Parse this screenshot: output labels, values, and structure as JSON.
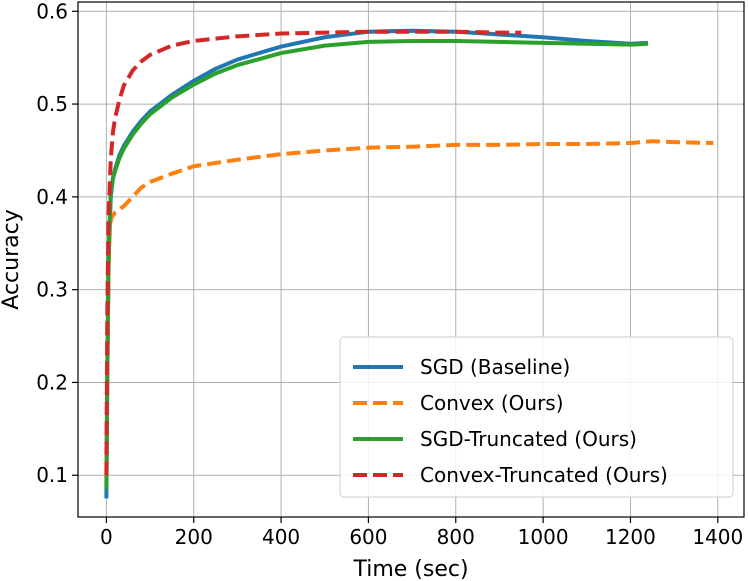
{
  "chart_data": {
    "type": "line",
    "title": "",
    "xlabel": "Time (sec)",
    "ylabel": "Accuracy",
    "xlim": [
      -65,
      1460
    ],
    "ylim": [
      0.055,
      0.61
    ],
    "xticks": [
      0,
      200,
      400,
      600,
      800,
      1000,
      1200,
      1400
    ],
    "yticks": [
      0.1,
      0.2,
      0.3,
      0.4,
      0.5,
      0.6
    ],
    "xtick_labels": [
      "0",
      "200",
      "400",
      "600",
      "800",
      "1000",
      "1200",
      "1400"
    ],
    "ytick_labels": [
      "0.1",
      "0.2",
      "0.3",
      "0.4",
      "0.5",
      "0.6"
    ],
    "grid": true,
    "legend_position": "lower-right",
    "series": [
      {
        "name": "SGD (Baseline)",
        "color": "#1f77b4",
        "style": "solid",
        "x": [
          0,
          2,
          5,
          10,
          15,
          20,
          30,
          40,
          60,
          80,
          100,
          150,
          200,
          250,
          300,
          400,
          500,
          600,
          700,
          800,
          900,
          1000,
          1100,
          1200,
          1240
        ],
        "y": [
          0.075,
          0.2,
          0.33,
          0.4,
          0.42,
          0.43,
          0.445,
          0.455,
          0.47,
          0.482,
          0.492,
          0.51,
          0.525,
          0.538,
          0.548,
          0.562,
          0.572,
          0.578,
          0.579,
          0.578,
          0.575,
          0.572,
          0.568,
          0.565,
          0.566
        ]
      },
      {
        "name": "Convex (Ours)",
        "color": "#ff7f0e",
        "style": "dashed",
        "x": [
          0,
          2,
          5,
          8,
          12,
          20,
          40,
          60,
          80,
          100,
          150,
          200,
          300,
          400,
          500,
          600,
          700,
          800,
          900,
          1000,
          1100,
          1200,
          1250,
          1300,
          1390
        ],
        "y": [
          0.09,
          0.2,
          0.32,
          0.37,
          0.378,
          0.383,
          0.39,
          0.4,
          0.41,
          0.416,
          0.425,
          0.433,
          0.44,
          0.446,
          0.45,
          0.453,
          0.454,
          0.456,
          0.456,
          0.457,
          0.457,
          0.458,
          0.46,
          0.459,
          0.458
        ]
      },
      {
        "name": "SGD-Truncated (Ours)",
        "color": "#2ca02c",
        "style": "solid",
        "x": [
          0,
          2,
          5,
          10,
          15,
          20,
          30,
          40,
          60,
          80,
          100,
          150,
          200,
          250,
          300,
          400,
          500,
          600,
          700,
          800,
          900,
          1000,
          1100,
          1200,
          1240
        ],
        "y": [
          0.085,
          0.21,
          0.34,
          0.405,
          0.42,
          0.428,
          0.442,
          0.452,
          0.467,
          0.479,
          0.489,
          0.507,
          0.521,
          0.533,
          0.542,
          0.555,
          0.563,
          0.567,
          0.568,
          0.568,
          0.567,
          0.566,
          0.565,
          0.564,
          0.565
        ]
      },
      {
        "name": "Convex-Truncated (Ours)",
        "color": "#d62728",
        "style": "dashed",
        "x": [
          0,
          2,
          5,
          10,
          15,
          20,
          30,
          40,
          60,
          80,
          100,
          150,
          200,
          300,
          400,
          500,
          600,
          700,
          800,
          900,
          950
        ],
        "y": [
          0.1,
          0.27,
          0.38,
          0.44,
          0.47,
          0.485,
          0.505,
          0.52,
          0.536,
          0.546,
          0.553,
          0.563,
          0.568,
          0.573,
          0.576,
          0.577,
          0.578,
          0.578,
          0.578,
          0.577,
          0.577
        ]
      }
    ]
  }
}
